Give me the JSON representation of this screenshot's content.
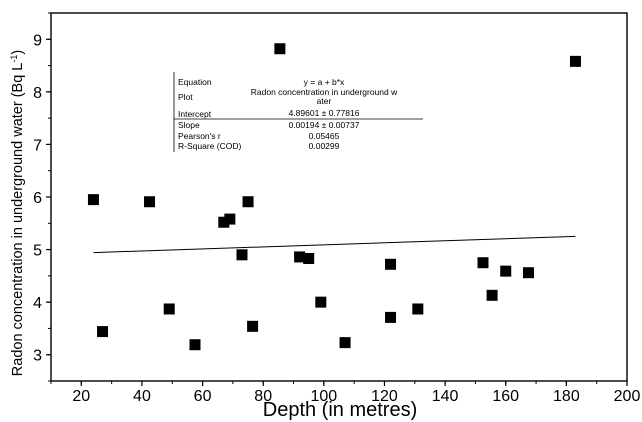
{
  "chart_data": {
    "type": "scatter",
    "title": "",
    "xlabel": "Depth (in metres)",
    "ylabel_main": "Radon concentration in underground water (Bq L",
    "ylabel_sup": "-1",
    "ylabel_end": ")",
    "xlim": [
      10,
      200
    ],
    "ylim": [
      2.5,
      9.5
    ],
    "xticks": [
      "20",
      "40",
      "60",
      "80",
      "100",
      "120",
      "140",
      "160",
      "180",
      "200"
    ],
    "yticks": [
      "3",
      "4",
      "5",
      "6",
      "7",
      "8",
      "9"
    ],
    "grid": false,
    "legend": "none",
    "points": [
      {
        "x": 24,
        "y": 5.95
      },
      {
        "x": 27,
        "y": 3.44
      },
      {
        "x": 42.5,
        "y": 5.91
      },
      {
        "x": 49,
        "y": 3.87
      },
      {
        "x": 57.5,
        "y": 3.19
      },
      {
        "x": 67,
        "y": 5.52
      },
      {
        "x": 69,
        "y": 5.58
      },
      {
        "x": 73,
        "y": 4.9
      },
      {
        "x": 75,
        "y": 5.91
      },
      {
        "x": 76.5,
        "y": 3.54
      },
      {
        "x": 85.5,
        "y": 8.82
      },
      {
        "x": 92,
        "y": 4.86
      },
      {
        "x": 95,
        "y": 4.83
      },
      {
        "x": 99,
        "y": 4.0
      },
      {
        "x": 107,
        "y": 3.23
      },
      {
        "x": 122,
        "y": 4.72
      },
      {
        "x": 122,
        "y": 3.71
      },
      {
        "x": 131,
        "y": 3.87
      },
      {
        "x": 152.5,
        "y": 4.75
      },
      {
        "x": 155.5,
        "y": 4.13
      },
      {
        "x": 160,
        "y": 4.59
      },
      {
        "x": 167.5,
        "y": 4.56
      },
      {
        "x": 183,
        "y": 8.58
      }
    ],
    "fit_line": {
      "intercept": 4.89601,
      "slope": 0.00194,
      "x_start": 24,
      "x_end": 183
    },
    "stats_table": {
      "rows": [
        {
          "label": "Equation",
          "value": "y = a + b*x",
          "value2": ""
        },
        {
          "label": "Plot",
          "value": "Radon concentration in underground w",
          "value2": "ater"
        },
        {
          "label": "Intercept",
          "value": "4.89601 ± 0.77816",
          "value2": ""
        },
        {
          "label": "Slope",
          "value": "0.00194 ± 0.00737",
          "value2": ""
        },
        {
          "label": "Pearson's r",
          "value": "0.05465",
          "value2": ""
        },
        {
          "label": "R-Square (COD)",
          "value": "0.00299",
          "value2": ""
        }
      ]
    },
    "colors": {
      "marker": "#000000",
      "fit_line": "#000000",
      "axis": "#000000"
    }
  }
}
